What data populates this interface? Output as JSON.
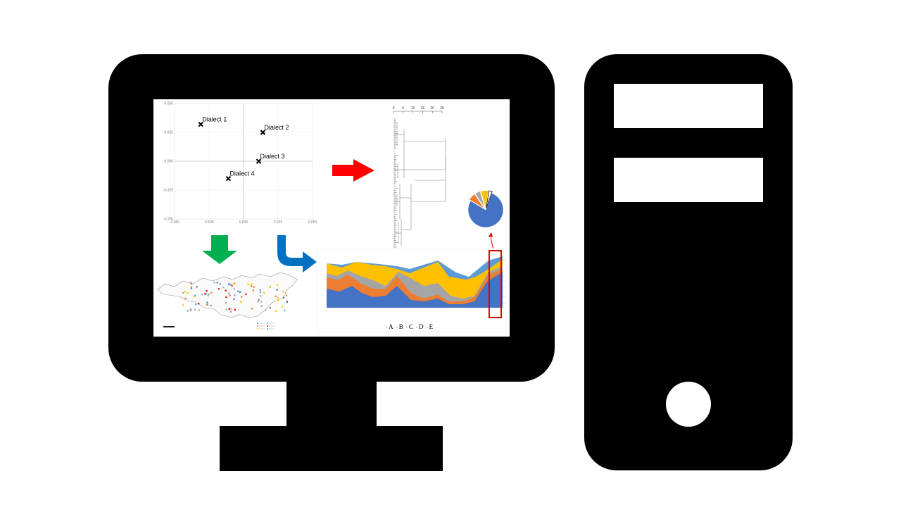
{
  "scatter": {
    "yticks": [
      "0.050",
      "0.025",
      "0.000",
      "-0.025",
      "-0.050"
    ],
    "xticks": [
      "-0.050",
      "-0.025",
      "0.000",
      "0.025",
      "0.050"
    ],
    "points": [
      {
        "label": "Dialect 1",
        "x": -0.031,
        "y": 0.032
      },
      {
        "label": "Dialect 2",
        "x": 0.014,
        "y": 0.025
      },
      {
        "label": "Dialect 3",
        "x": 0.011,
        "y": 0.0
      },
      {
        "label": "Dialect 4",
        "x": -0.011,
        "y": -0.015
      }
    ]
  },
  "dendrogram": {
    "ticks": [
      "0",
      "5",
      "10",
      "15",
      "20",
      "25"
    ]
  },
  "area_legend": [
    "A",
    "B",
    "C",
    "D",
    "E"
  ],
  "colors": {
    "red_arrow": "#ff0000",
    "green_arrow": "#00b050",
    "blue_arrow": "#0070c0",
    "series_blue": "#4472c4",
    "series_orange": "#ed7d31",
    "series_gray": "#a5a5a5",
    "series_yellow": "#ffc000",
    "series_lightblue": "#5b9bd5",
    "highlight": "#e00000"
  },
  "pie": {
    "values": [
      78,
      7,
      5,
      7,
      3
    ]
  }
}
